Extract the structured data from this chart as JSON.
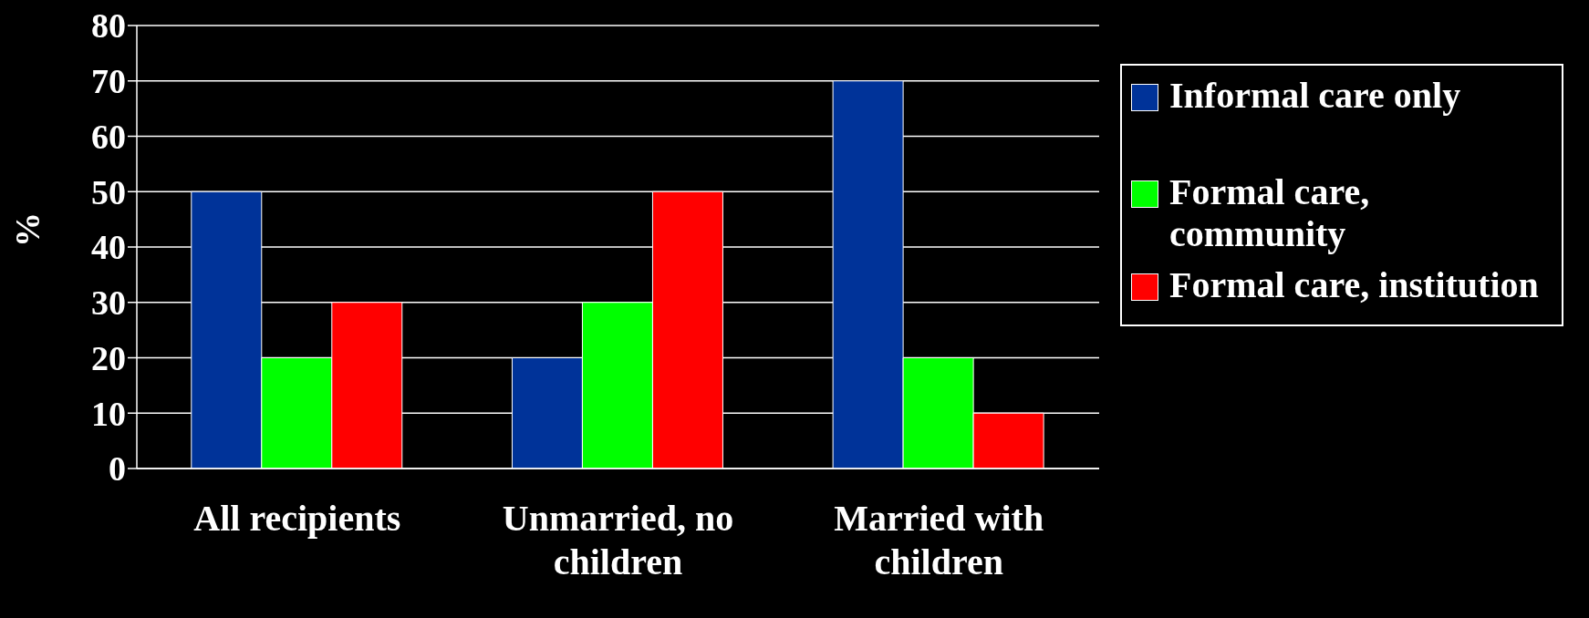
{
  "chart_data": {
    "type": "bar",
    "ylabel": "%",
    "categories": [
      "All recipients",
      "Unmarried, no children",
      "Married with children"
    ],
    "series": [
      {
        "name": "Informal care only",
        "color": "#003399",
        "values": [
          50,
          20,
          70
        ]
      },
      {
        "name": "Formal care, community",
        "color": "#00ff00",
        "values": [
          20,
          30,
          20
        ]
      },
      {
        "name": "Formal care, institution",
        "color": "#ff0000",
        "values": [
          30,
          50,
          10
        ]
      }
    ],
    "ylim": [
      0,
      80
    ],
    "yticks": [
      0,
      10,
      20,
      30,
      40,
      50,
      60,
      70,
      80
    ],
    "grid": "y",
    "legend": "right"
  }
}
